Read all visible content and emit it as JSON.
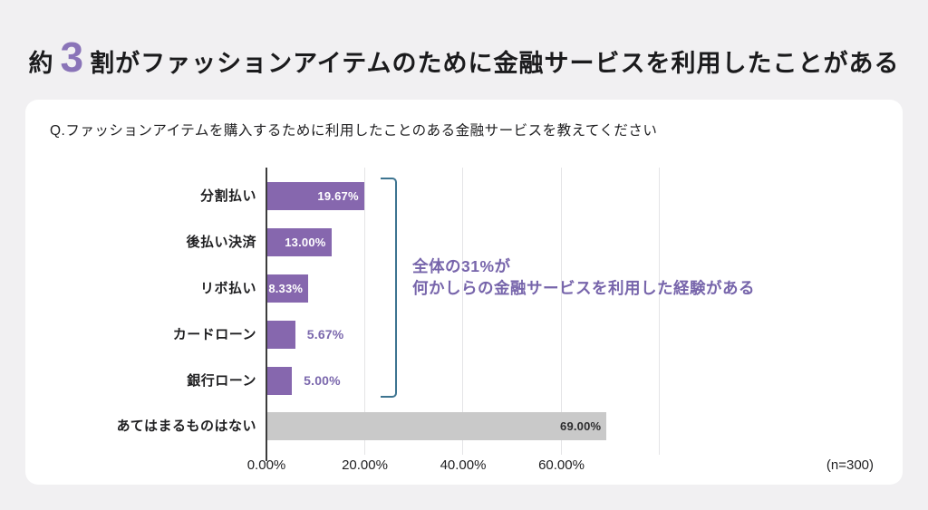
{
  "title": {
    "prefix": "約",
    "highlight": "3",
    "suffix": "割がファッションアイテムのために金融サービスを利用したことがある"
  },
  "card": {
    "question": "Q.ファッションアイテムを購入するために利用したことのある金融サービスを教えてください",
    "sample_size": "(n=300)"
  },
  "annotation": {
    "line1": "全体の31%が",
    "line2": "何かしらの金融サービスを利用した経験がある"
  },
  "colors": {
    "title_highlight": "#8a74b8",
    "accent_purple": "#8667ae",
    "label_purple": "#7b68ad",
    "annotation_purple": "#7765ab",
    "bracket_teal": "#3d7490",
    "neutral_gray": "#c9c9c9",
    "inside_label_white": "#ffffff",
    "gray_bar_label": "#2c2c2e"
  },
  "chart_data": {
    "type": "bar",
    "orientation": "horizontal",
    "title": "",
    "xlabel": "",
    "ylabel": "",
    "categories": [
      "分割払い",
      "後払い決済",
      "リボ払い",
      "カードローン",
      "銀行ローン",
      "あてはまるものはない"
    ],
    "values": [
      19.67,
      13.0,
      8.33,
      5.67,
      5.0,
      69.0
    ],
    "value_labels": [
      "19.67%",
      "13.00%",
      "8.33%",
      "5.67%",
      "5.00%",
      "69.00%"
    ],
    "label_inside": [
      true,
      true,
      true,
      false,
      false,
      true
    ],
    "bar_colors": [
      "#8667ae",
      "#8667ae",
      "#8667ae",
      "#8667ae",
      "#8667ae",
      "#c9c9c9"
    ],
    "value_label_colors": [
      "#ffffff",
      "#ffffff",
      "#ffffff",
      "#7b68ad",
      "#7b68ad",
      "#2c2c2e"
    ],
    "x_ticks": [
      0,
      20,
      40,
      60
    ],
    "x_tick_labels": [
      "0.00%",
      "20.00%",
      "40.00%",
      "60.00%"
    ],
    "gridlines": [
      20,
      40,
      60,
      80
    ],
    "xlim": [
      0,
      80
    ],
    "grid": true,
    "legend": false
  }
}
